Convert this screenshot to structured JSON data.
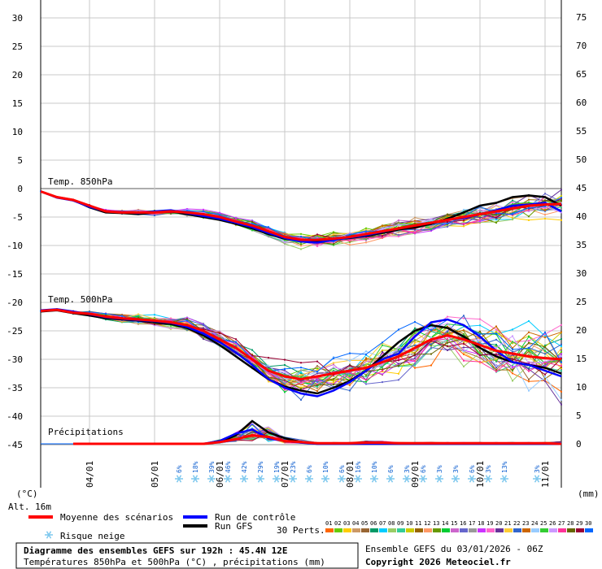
{
  "chart_data": {
    "type": "line",
    "title": "Diagramme des ensembles GEFS sur 192h : 45.4N 12E",
    "subtitle": "Températures 850hPa et 500hPa (°C) , précipitations (mm)",
    "left_axis": {
      "label": "(°C)",
      "ticks": [
        30,
        25,
        20,
        15,
        10,
        5,
        0,
        -5,
        -10,
        -15,
        -20,
        -25,
        -30,
        -35,
        -40,
        -45
      ]
    },
    "right_axis": {
      "label": "(mm)",
      "ticks": [
        75,
        70,
        65,
        60,
        55,
        50,
        45,
        40,
        35,
        30,
        25,
        20,
        15,
        10,
        5,
        0
      ]
    },
    "x_tick_labels": [
      "04/01",
      "05/01",
      "06/01",
      "07/01",
      "08/01",
      "09/01",
      "10/01",
      "11/01"
    ],
    "altitude_label": "Alt. 16m",
    "panel_labels": {
      "t850": "Temp. 850hPa",
      "t500": "Temp. 500hPa",
      "precip": "Précipitations"
    },
    "x": [
      0,
      6,
      12,
      18,
      24,
      30,
      36,
      42,
      48,
      54,
      60,
      66,
      72,
      78,
      84,
      90,
      96,
      102,
      108,
      114,
      120,
      126,
      132,
      138,
      144,
      150,
      156,
      162,
      168,
      174,
      180,
      186,
      192
    ],
    "series": [
      {
        "name": "Moyenne des scénarios",
        "color": "#ff0000",
        "t850": [
          -0.5,
          -1.5,
          -2,
          -3,
          -4,
          -4.2,
          -4.2,
          -4.2,
          -4,
          -4.2,
          -4.5,
          -5,
          -5.8,
          -6.5,
          -7.5,
          -8.5,
          -9,
          -9,
          -8.8,
          -8.5,
          -8,
          -7.5,
          -7,
          -6.5,
          -6,
          -5.5,
          -5,
          -4.5,
          -4,
          -3.5,
          -3,
          -2.8,
          -2.7
        ],
        "t500": [
          -21.5,
          -21.3,
          -21.8,
          -22,
          -22.5,
          -22.8,
          -23,
          -23.2,
          -23.5,
          -24,
          -25,
          -26.5,
          -28,
          -30,
          -32,
          -33,
          -33.5,
          -33,
          -32.5,
          -32,
          -31.5,
          -30.5,
          -29.5,
          -28,
          -26.5,
          -25.8,
          -26.5,
          -27.5,
          -28.5,
          -29,
          -29.5,
          -29.8,
          -30
        ],
        "precip": [
          0,
          0,
          0,
          0,
          0,
          0,
          0,
          0,
          0,
          0,
          0,
          0.3,
          0.8,
          1.5,
          1.2,
          0.5,
          0.3,
          0.1,
          0.1,
          0.1,
          0.2,
          0.2,
          0.1,
          0.1,
          0.1,
          0.1,
          0.1,
          0.1,
          0.1,
          0.1,
          0.1,
          0.1,
          0
        ]
      },
      {
        "name": "Run de contrôle",
        "color": "#0000ff",
        "t850": [
          -0.5,
          -1.6,
          -2.1,
          -3.2,
          -4,
          -4.1,
          -4.3,
          -4,
          -3.8,
          -4.3,
          -4.8,
          -5.3,
          -6,
          -6.8,
          -7.8,
          -8.7,
          -9.3,
          -9.5,
          -9,
          -8.6,
          -8.2,
          -7.6,
          -7,
          -6.5,
          -6,
          -5.5,
          -5.2,
          -4.5,
          -3.8,
          -3,
          -2.8,
          -2.5,
          -4
        ],
        "t500": [
          -21.4,
          -21.2,
          -21.6,
          -22.1,
          -22.6,
          -22.9,
          -23.1,
          -23.3,
          -23.6,
          -24.3,
          -25.5,
          -27,
          -28.8,
          -31,
          -33.5,
          -35,
          -36,
          -36.5,
          -35.5,
          -34,
          -32,
          -30,
          -29,
          -26,
          -23.5,
          -23,
          -24,
          -26,
          -28.5,
          -30.5,
          -31,
          -32,
          -33
        ],
        "precip": [
          0,
          0,
          0,
          0,
          0,
          0,
          0,
          0,
          0,
          0,
          0,
          0.5,
          1.8,
          2.5,
          1.0,
          0.5,
          0.2,
          0,
          0,
          0,
          0,
          0,
          0,
          0,
          0,
          0,
          0,
          0,
          0,
          0,
          0,
          0,
          0
        ]
      },
      {
        "name": "Run GFS",
        "color": "#000000",
        "t850": [
          -0.5,
          -1.5,
          -2,
          -3.3,
          -4.2,
          -4.3,
          -4.5,
          -4.2,
          -4,
          -4.5,
          -5,
          -5.5,
          -6.2,
          -7,
          -8,
          -8.8,
          -9.2,
          -9.2,
          -8.9,
          -8.7,
          -8.3,
          -7.8,
          -7.2,
          -6.8,
          -6.2,
          -5.3,
          -4.2,
          -3,
          -2.5,
          -1.5,
          -1.2,
          -1.5,
          -3
        ],
        "t500": [
          -21.6,
          -21.4,
          -21.9,
          -22.3,
          -22.8,
          -23,
          -23.2,
          -23.5,
          -23.8,
          -24.5,
          -25.8,
          -27.5,
          -29.5,
          -31.5,
          -33.5,
          -34.8,
          -35.5,
          -36,
          -35,
          -33.8,
          -32,
          -29.5,
          -27,
          -25,
          -24,
          -24.5,
          -26,
          -28,
          -29.5,
          -30.5,
          -31,
          -31.5,
          -32.5
        ],
        "precip": [
          0,
          0,
          0,
          0,
          0,
          0,
          0,
          0,
          0,
          0,
          0,
          0.3,
          1.5,
          4.0,
          2.0,
          1.0,
          0.3,
          0,
          0,
          0,
          0,
          0,
          0,
          0,
          0,
          0,
          0,
          0,
          0,
          0,
          0,
          0,
          0
        ]
      }
    ],
    "perturbation_label": "30 Perts.",
    "perturbation_numbers": [
      "01",
      "02",
      "03",
      "04",
      "05",
      "06",
      "07",
      "08",
      "09",
      "10",
      "11",
      "12",
      "13",
      "14",
      "15",
      "16",
      "17",
      "18",
      "19",
      "20",
      "21",
      "22",
      "23",
      "24",
      "25",
      "26",
      "27",
      "28",
      "29",
      "30"
    ],
    "perturbation_colors": [
      "#ff6600",
      "#66cc00",
      "#ffcc00",
      "#cc9966",
      "#996633",
      "#009966",
      "#00ccff",
      "#99cc66",
      "#33cc99",
      "#cccc00",
      "#996600",
      "#ff9966",
      "#669900",
      "#00cc33",
      "#cc66cc",
      "#6666cc",
      "#999999",
      "#cc33ff",
      "#ff66cc",
      "#663399",
      "#ffcc33",
      "#3366cc",
      "#cc6600",
      "#99ccff",
      "#33cc33",
      "#cc99ff",
      "#ff3399",
      "#666600",
      "#990033",
      "#0066ff"
    ],
    "snow_risk": [
      {
        "x": 51,
        "pct": "6%"
      },
      {
        "x": 57,
        "pct": "18%"
      },
      {
        "x": 63,
        "pct": "39%"
      },
      {
        "x": 69,
        "pct": "46%"
      },
      {
        "x": 75,
        "pct": "42%"
      },
      {
        "x": 81,
        "pct": "29%"
      },
      {
        "x": 87,
        "pct": "19%"
      },
      {
        "x": 93,
        "pct": "23%"
      },
      {
        "x": 99,
        "pct": "6%"
      },
      {
        "x": 105,
        "pct": "10%"
      },
      {
        "x": 111,
        "pct": "6%"
      },
      {
        "x": 117,
        "pct": "16%"
      },
      {
        "x": 123,
        "pct": "10%"
      },
      {
        "x": 129,
        "pct": "6%"
      },
      {
        "x": 135,
        "pct": "3%"
      },
      {
        "x": 141,
        "pct": "6%"
      },
      {
        "x": 147,
        "pct": "3%"
      },
      {
        "x": 153,
        "pct": "3%"
      },
      {
        "x": 159,
        "pct": "6%"
      },
      {
        "x": 165,
        "pct": "3%"
      },
      {
        "x": 171,
        "pct": "13%"
      },
      {
        "x": 183,
        "pct": "3%"
      }
    ]
  },
  "legend": {
    "mean": "Moyenne des scénarios",
    "control": "Run de contrôle",
    "gfs": "Run GFS",
    "snow": "Risque neige"
  },
  "footer": {
    "ensemble_info": "Ensemble GEFS du 03/01/2026 - 06Z",
    "copyright": "Copyright 2026 Meteociel.fr"
  },
  "colors": {
    "mean": "#ff0000",
    "control": "#0000ff",
    "gfs": "#000000",
    "grid": "#c8c8c8",
    "snow": "#7ec8ee",
    "pct": "#1060d0"
  }
}
